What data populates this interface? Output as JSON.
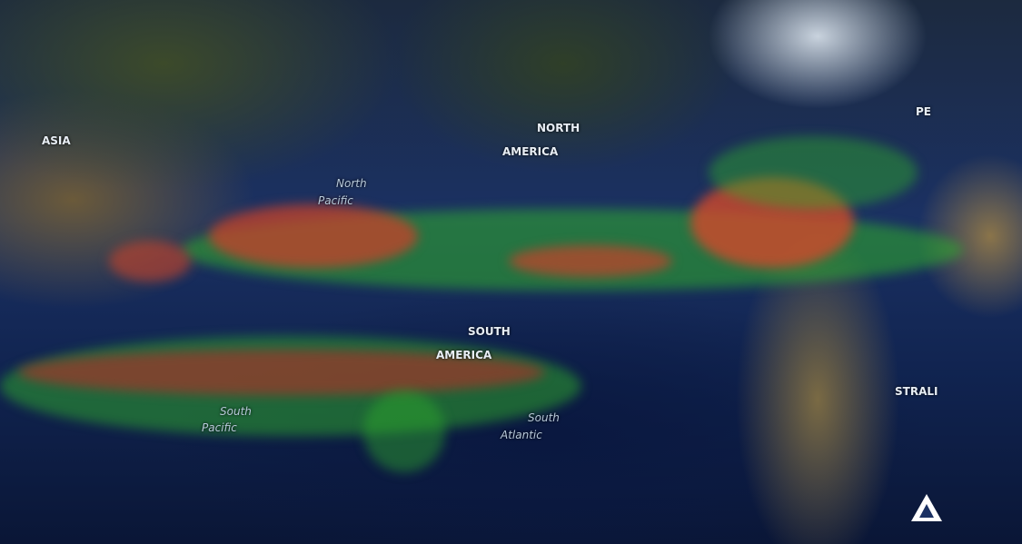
{
  "map": {
    "type": "satellite world map with storm tracks",
    "labels": {
      "asia": "ASIA",
      "north_america_1": "NORTH",
      "north_america_2": "AMERICA",
      "north_pacific_1": "North",
      "north_pacific_2": "Pacific",
      "south_america_1": "SOUTH",
      "south_america_2": "AMERICA",
      "south_pacific_1": "South",
      "south_pacific_2": "Pacific",
      "south_atlantic_1": "South",
      "south_atlantic_2": "Atlantic",
      "europe_partial": "PE",
      "australia_partial": "STRALI"
    },
    "colors": {
      "ocean": "#10234f",
      "track_low": "#2fae2a",
      "track_high": "#c8422a",
      "tracks_faint": "#d9e0cc"
    }
  }
}
